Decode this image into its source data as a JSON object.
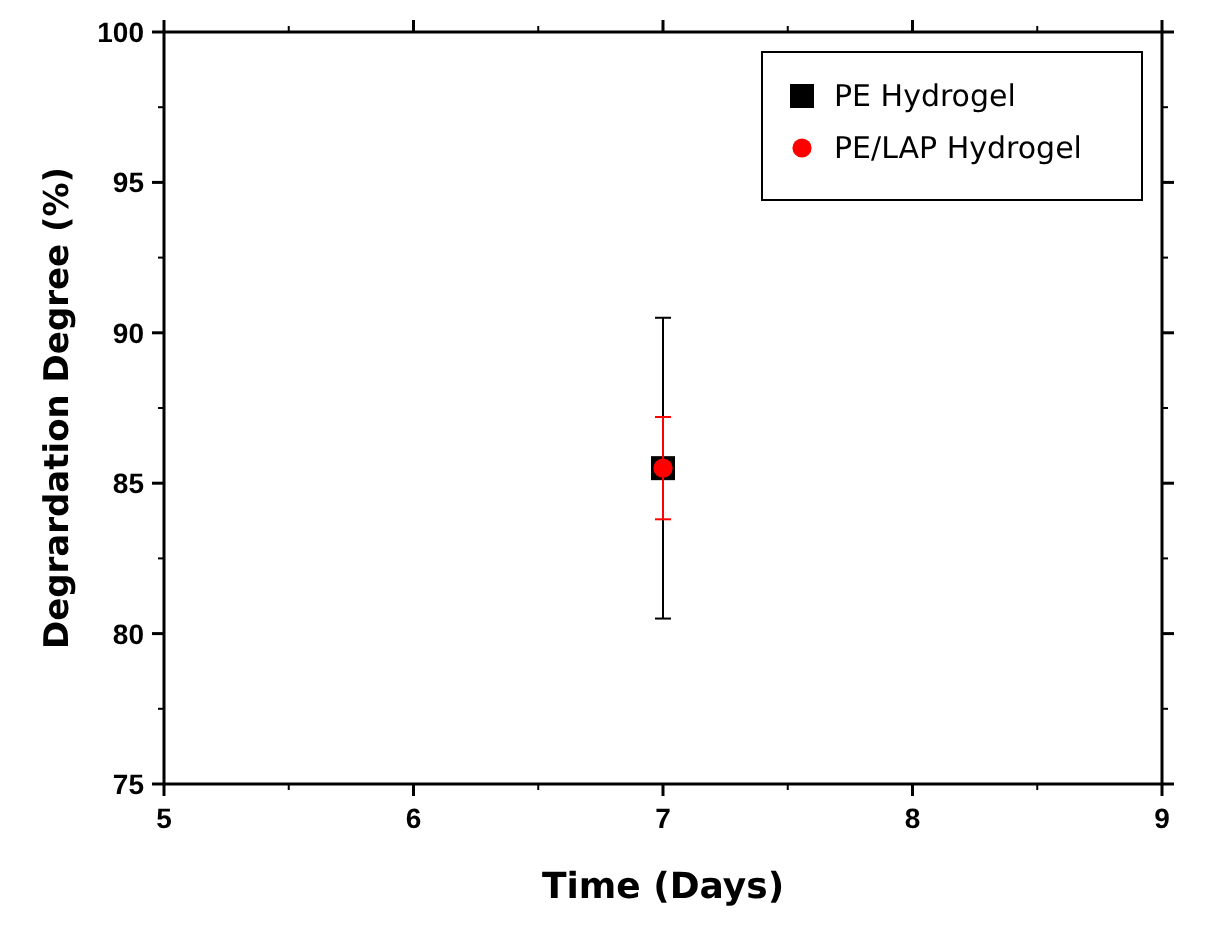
{
  "chart_data": {
    "type": "scatter",
    "xlabel": "Time (Days)",
    "ylabel": "Degrardation Degree (%)",
    "x": [
      7
    ],
    "xlim": [
      5,
      9
    ],
    "xticks": [
      5,
      6,
      7,
      8,
      9
    ],
    "ylim": [
      75,
      100
    ],
    "yticks": [
      75,
      80,
      85,
      90,
      95,
      100
    ],
    "legend": "top right",
    "grid": false,
    "series": [
      {
        "name": "PE Hydrogel",
        "color": "#000000",
        "marker": "square",
        "values": [
          85.5
        ],
        "errors": [
          5.0
        ]
      },
      {
        "name": "PE/LAP Hydrogel",
        "color": "#ff0000",
        "marker": "circle",
        "values": [
          85.5
        ],
        "errors": [
          1.7
        ]
      }
    ]
  }
}
